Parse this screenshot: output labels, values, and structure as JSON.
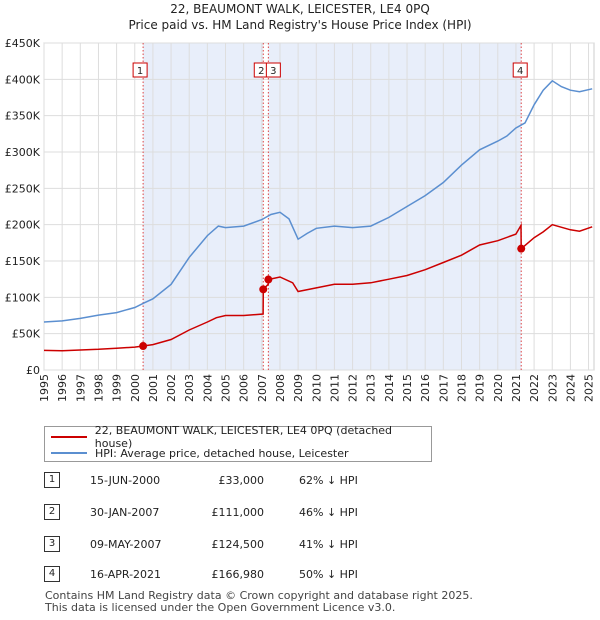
{
  "chart_data": {
    "type": "line",
    "title": "22, BEAUMONT WALK, LEICESTER, LE4 0PQ",
    "subtitle": "Price paid vs. HM Land Registry's House Price Index (HPI)",
    "xlim": [
      1995,
      2025.3
    ],
    "ylim": [
      0,
      450000
    ],
    "x_ticks": [
      1995,
      1996,
      1997,
      1998,
      1999,
      2000,
      2001,
      2002,
      2003,
      2004,
      2005,
      2006,
      2007,
      2008,
      2009,
      2010,
      2011,
      2012,
      2013,
      2014,
      2015,
      2016,
      2017,
      2018,
      2019,
      2020,
      2021,
      2022,
      2023,
      2024,
      2025
    ],
    "y_ticks": [
      {
        "value": 0,
        "label": "£0"
      },
      {
        "value": 50000,
        "label": "£50K"
      },
      {
        "value": 100000,
        "label": "£100K"
      },
      {
        "value": 150000,
        "label": "£150K"
      },
      {
        "value": 200000,
        "label": "£200K"
      },
      {
        "value": 250000,
        "label": "£250K"
      },
      {
        "value": 300000,
        "label": "£300K"
      },
      {
        "value": 350000,
        "label": "£350K"
      },
      {
        "value": 400000,
        "label": "£400K"
      },
      {
        "value": 450000,
        "label": "£450K"
      }
    ],
    "series": [
      {
        "name": "22, BEAUMONT WALK, LEICESTER, LE4 0PQ (detached house)",
        "color": "#cc0000",
        "points": [
          [
            1995.0,
            27000
          ],
          [
            1996.0,
            26500
          ],
          [
            1997.0,
            27500
          ],
          [
            1998.0,
            28500
          ],
          [
            1999.0,
            30000
          ],
          [
            2000.0,
            31500
          ],
          [
            2000.46,
            33000
          ],
          [
            2001.0,
            35000
          ],
          [
            2002.0,
            42000
          ],
          [
            2003.0,
            55000
          ],
          [
            2004.0,
            66000
          ],
          [
            2004.5,
            72000
          ],
          [
            2005.0,
            75000
          ],
          [
            2006.0,
            75000
          ],
          [
            2007.07,
            77000
          ],
          [
            2007.08,
            111000
          ],
          [
            2007.35,
            118000
          ],
          [
            2007.36,
            124500
          ],
          [
            2008.0,
            128000
          ],
          [
            2008.7,
            120000
          ],
          [
            2009.0,
            108000
          ],
          [
            2010.0,
            113000
          ],
          [
            2011.0,
            118000
          ],
          [
            2012.0,
            118000
          ],
          [
            2013.0,
            120000
          ],
          [
            2014.0,
            125000
          ],
          [
            2015.0,
            130000
          ],
          [
            2016.0,
            138000
          ],
          [
            2017.0,
            148000
          ],
          [
            2018.0,
            158000
          ],
          [
            2019.0,
            172000
          ],
          [
            2020.0,
            178000
          ],
          [
            2021.0,
            187000
          ],
          [
            2021.28,
            199000
          ],
          [
            2021.29,
            166980
          ],
          [
            2022.0,
            182000
          ],
          [
            2022.5,
            190000
          ],
          [
            2023.0,
            200000
          ],
          [
            2024.0,
            193000
          ],
          [
            2024.5,
            191000
          ],
          [
            2025.2,
            197000
          ]
        ]
      },
      {
        "name": "HPI: Average price, detached house, Leicester",
        "color": "#5b8fd0",
        "points": [
          [
            1995.0,
            66000
          ],
          [
            1996.0,
            67500
          ],
          [
            1997.0,
            71000
          ],
          [
            1998.0,
            75500
          ],
          [
            1999.0,
            79000
          ],
          [
            2000.0,
            86000
          ],
          [
            2000.5,
            92000
          ],
          [
            2001.0,
            98000
          ],
          [
            2002.0,
            118000
          ],
          [
            2003.0,
            155000
          ],
          [
            2004.0,
            185000
          ],
          [
            2004.6,
            198000
          ],
          [
            2005.0,
            196000
          ],
          [
            2006.0,
            198000
          ],
          [
            2007.0,
            207000
          ],
          [
            2007.5,
            214000
          ],
          [
            2008.0,
            217000
          ],
          [
            2008.5,
            208000
          ],
          [
            2009.0,
            180000
          ],
          [
            2009.5,
            188000
          ],
          [
            2010.0,
            195000
          ],
          [
            2011.0,
            198000
          ],
          [
            2012.0,
            196000
          ],
          [
            2013.0,
            198000
          ],
          [
            2014.0,
            210000
          ],
          [
            2015.0,
            225000
          ],
          [
            2016.0,
            240000
          ],
          [
            2017.0,
            258000
          ],
          [
            2018.0,
            282000
          ],
          [
            2019.0,
            303000
          ],
          [
            2020.0,
            315000
          ],
          [
            2020.5,
            322000
          ],
          [
            2021.0,
            333000
          ],
          [
            2021.5,
            340000
          ],
          [
            2022.0,
            365000
          ],
          [
            2022.5,
            385000
          ],
          [
            2023.0,
            398000
          ],
          [
            2023.5,
            390000
          ],
          [
            2024.0,
            385000
          ],
          [
            2024.5,
            383000
          ],
          [
            2025.2,
            387000
          ]
        ]
      }
    ],
    "sales": [
      {
        "label": "1",
        "x": 2000.46,
        "value": 33000
      },
      {
        "label": "2",
        "x": 2007.08,
        "value": 111000
      },
      {
        "label": "3",
        "x": 2007.36,
        "value": 124500
      },
      {
        "label": "4",
        "x": 2021.29,
        "value": 166980
      }
    ],
    "shaded_ranges": [
      [
        2000.46,
        2007.08
      ],
      [
        2007.36,
        2021.29
      ]
    ]
  },
  "legend": {
    "property_label": "22, BEAUMONT WALK, LEICESTER, LE4 0PQ (detached house)",
    "hpi_label": "HPI: Average price, detached house, Leicester",
    "property_color": "#cc0000",
    "hpi_color": "#5b8fd0"
  },
  "table": {
    "rows": [
      {
        "num": "1",
        "date": "15-JUN-2000",
        "price": "£33,000",
        "hpi": "62% ↓ HPI"
      },
      {
        "num": "2",
        "date": "30-JAN-2007",
        "price": "£111,000",
        "hpi": "46% ↓ HPI"
      },
      {
        "num": "3",
        "date": "09-MAY-2007",
        "price": "£124,500",
        "hpi": "41% ↓ HPI"
      },
      {
        "num": "4",
        "date": "16-APR-2021",
        "price": "£166,980",
        "hpi": "50% ↓ HPI"
      }
    ]
  },
  "footer": {
    "line1": "Contains HM Land Registry data © Crown copyright and database right 2025.",
    "line2": "This data is licensed under the Open Government Licence v3.0."
  }
}
